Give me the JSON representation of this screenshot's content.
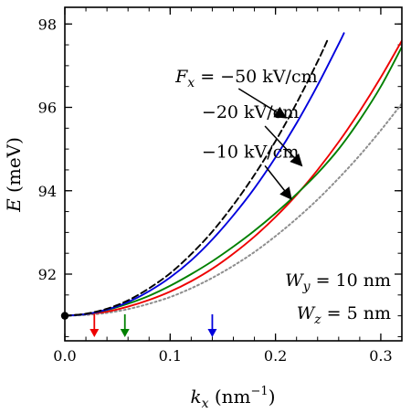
{
  "chart_data": {
    "type": "line",
    "title": "",
    "xlabel": "k_x (nm^-1)",
    "ylabel": "E (meV)",
    "xlim": [
      0.0,
      0.32
    ],
    "ylim": [
      90.4,
      98.4
    ],
    "x_ticks": [
      {
        "value": 0.0,
        "label": "0.0"
      },
      {
        "value": 0.1,
        "label": "0.1"
      },
      {
        "value": 0.2,
        "label": "0.2"
      },
      {
        "value": 0.3,
        "label": "0.3"
      }
    ],
    "y_ticks": [
      {
        "value": 92,
        "label": "92"
      },
      {
        "value": 94,
        "label": "94"
      },
      {
        "value": 96,
        "label": "96"
      },
      {
        "value": 98,
        "label": "98"
      }
    ],
    "x_minor_step": 0.02,
    "y_minor_step": 0.5,
    "grid": false,
    "series": [
      {
        "color": "#000000",
        "dash": "dashed",
        "x": [
          0.0,
          0.02,
          0.04,
          0.06,
          0.08,
          0.1,
          0.12,
          0.14,
          0.16,
          0.18,
          0.2,
          0.22,
          0.24,
          0.25
        ],
        "y": [
          91.0,
          91.05,
          91.17,
          91.37,
          91.66,
          92.02,
          92.48,
          93.02,
          93.66,
          94.38,
          95.19,
          96.1,
          97.1,
          97.65
        ]
      },
      {
        "color": "#0000dd",
        "dash": "solid",
        "x": [
          0.0,
          0.02,
          0.04,
          0.06,
          0.08,
          0.1,
          0.12,
          0.14,
          0.16,
          0.18,
          0.2,
          0.22,
          0.24,
          0.26,
          0.265
        ],
        "y": [
          91.0,
          91.04,
          91.15,
          91.33,
          91.59,
          91.92,
          92.33,
          92.83,
          93.41,
          94.06,
          94.8,
          95.62,
          96.53,
          97.52,
          97.78
        ]
      },
      {
        "color": "#008000",
        "dash": "solid",
        "x": [
          0.0,
          0.02,
          0.04,
          0.06,
          0.08,
          0.1,
          0.12,
          0.14,
          0.16,
          0.18,
          0.2,
          0.22,
          0.24,
          0.26,
          0.28,
          0.3,
          0.32
        ],
        "y": [
          91.0,
          91.04,
          91.14,
          91.29,
          91.48,
          91.72,
          92.0,
          92.31,
          92.66,
          93.04,
          93.46,
          93.92,
          94.42,
          95.0,
          95.7,
          96.5,
          97.45
        ]
      },
      {
        "color": "#ee0000",
        "dash": "solid",
        "x": [
          0.0,
          0.02,
          0.04,
          0.06,
          0.08,
          0.1,
          0.12,
          0.14,
          0.16,
          0.18,
          0.2,
          0.22,
          0.24,
          0.26,
          0.28,
          0.3,
          0.32
        ],
        "y": [
          91.0,
          91.04,
          91.1,
          91.22,
          91.38,
          91.58,
          91.83,
          92.13,
          92.49,
          92.9,
          93.37,
          93.9,
          94.5,
          95.17,
          95.91,
          96.72,
          97.6
        ]
      },
      {
        "color": "#8e8e8e",
        "dash": "dotted",
        "x": [
          0.0,
          0.02,
          0.04,
          0.06,
          0.08,
          0.1,
          0.12,
          0.14,
          0.16,
          0.18,
          0.2,
          0.22,
          0.24,
          0.26,
          0.28,
          0.3,
          0.32
        ],
        "y": [
          91.0,
          91.02,
          91.07,
          91.16,
          91.29,
          91.45,
          91.66,
          91.91,
          92.2,
          92.53,
          92.91,
          93.33,
          93.79,
          94.3,
          94.85,
          95.45,
          96.09
        ]
      }
    ],
    "origin_point": {
      "x": 0.0,
      "y": 91.0
    },
    "down_arrows": [
      {
        "x": 0.028,
        "color": "#ee0000"
      },
      {
        "x": 0.057,
        "color": "#008000"
      },
      {
        "x": 0.14,
        "color": "#0000dd"
      }
    ],
    "field_labels": [
      {
        "text": "−50 kV/cm",
        "prefix": "F_x = ",
        "label_pos": [
          0.105,
          96.6
        ],
        "arrow_from": [
          0.165,
          96.45
        ],
        "arrow_to": [
          0.21,
          95.75
        ]
      },
      {
        "text": "−20 kV/cm",
        "prefix": "",
        "label_pos": [
          0.13,
          95.75
        ],
        "arrow_from": [
          0.19,
          95.55
        ],
        "arrow_to": [
          0.225,
          94.6
        ]
      },
      {
        "text": "−10 kV/cm",
        "prefix": "",
        "label_pos": [
          0.13,
          94.8
        ],
        "arrow_from": [
          0.19,
          94.6
        ],
        "arrow_to": [
          0.215,
          93.8
        ]
      }
    ],
    "annotations": [
      {
        "var": "W",
        "sub": "y",
        "text": " = 10 nm"
      },
      {
        "var": "W",
        "sub": "z",
        "text": " = 5 nm"
      }
    ]
  }
}
